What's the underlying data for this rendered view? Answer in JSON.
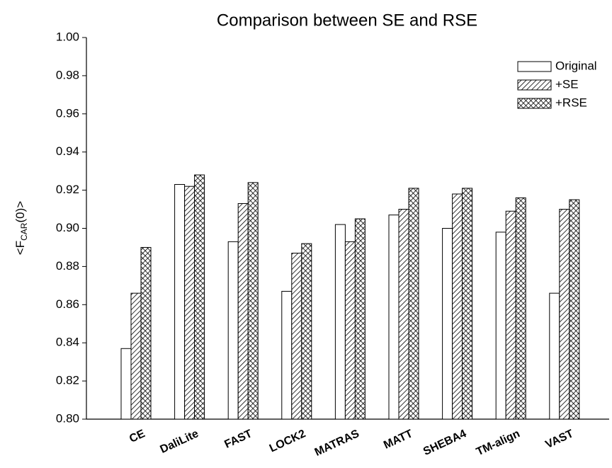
{
  "chart_data": {
    "type": "bar",
    "title": "Comparison between SE and RSE",
    "y_label": [
      "<F",
      "CAR",
      "(0)>"
    ],
    "categories": [
      "CE",
      "DaliLite",
      "FAST",
      "LOCK2",
      "MATRAS",
      "MATT",
      "SHEBA4",
      "TM-align",
      "VAST"
    ],
    "series": [
      {
        "name": "Original",
        "color": "#ffffff",
        "pattern": "none",
        "values": [
          0.837,
          0.923,
          0.893,
          0.867,
          0.902,
          0.907,
          0.9,
          0.898,
          0.866
        ]
      },
      {
        "name": "+SE",
        "color": "#ffffff",
        "pattern": "hatch",
        "values": [
          0.866,
          0.922,
          0.913,
          0.887,
          0.893,
          0.91,
          0.918,
          0.909,
          0.91
        ]
      },
      {
        "name": "+RSE",
        "color": "#ffffff",
        "pattern": "crosshatch",
        "values": [
          0.89,
          0.928,
          0.924,
          0.892,
          0.905,
          0.921,
          0.921,
          0.916,
          0.915
        ]
      }
    ],
    "ylim": [
      0.8,
      1.0
    ],
    "yticks": [
      {
        "value": 0.8,
        "label": "0.80"
      },
      0.82,
      0.84,
      0.86,
      0.88,
      {
        "value": 0.9,
        "label": "0.90"
      },
      0.92,
      0.94,
      0.96,
      0.98,
      {
        "value": 1.0,
        "label": "1.00"
      }
    ],
    "legend": "upper right",
    "grid": false
  }
}
